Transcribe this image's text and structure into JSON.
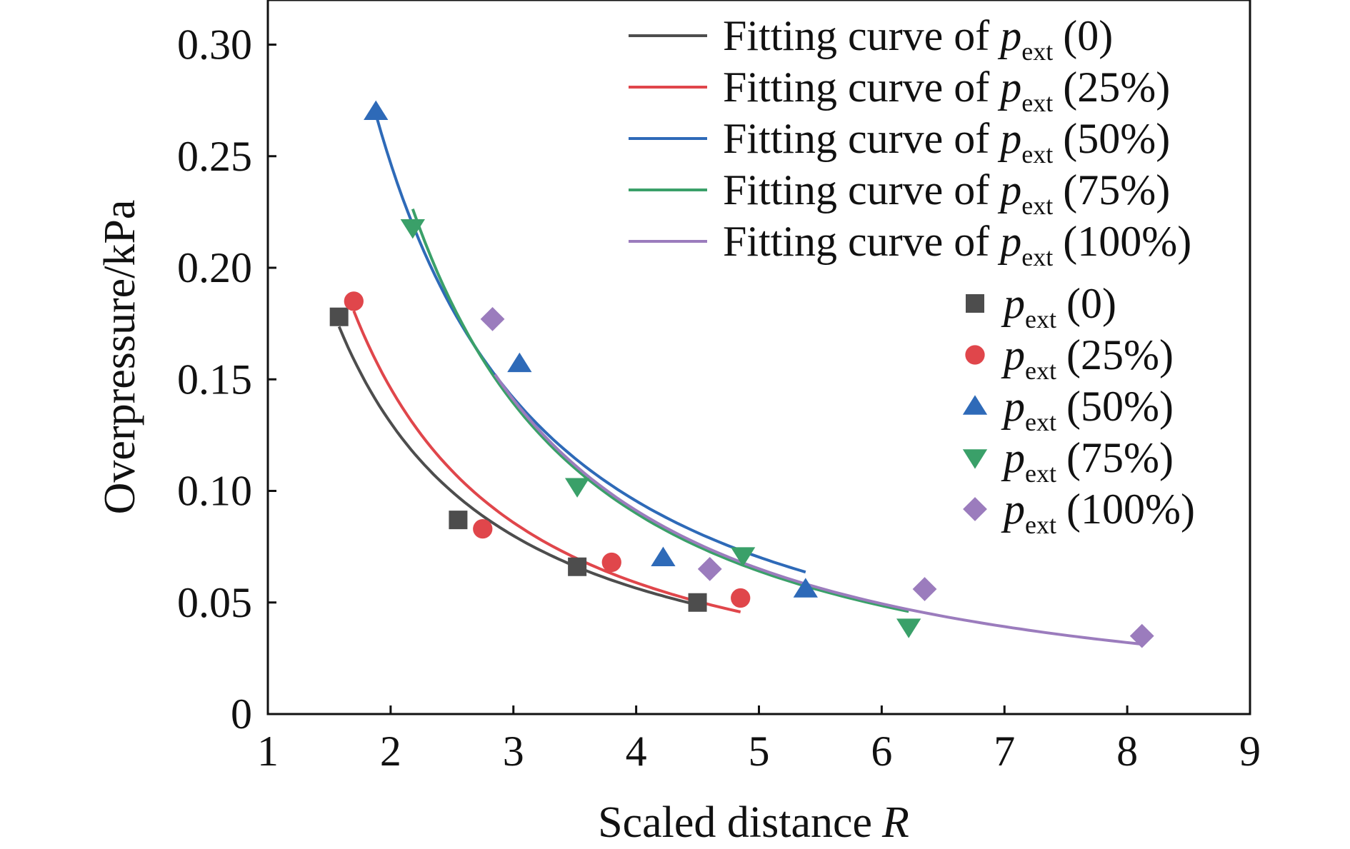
{
  "chart_data": {
    "type": "scatter",
    "xlabel": "Scaled distance",
    "xlabel_symbol": "R",
    "ylabel": "Overpressure/kPa",
    "xlim": [
      1,
      9
    ],
    "ylim": [
      0,
      0.32
    ],
    "xticks": [
      1,
      2,
      3,
      4,
      5,
      6,
      7,
      8,
      9
    ],
    "xtick_labels": [
      "1",
      "2",
      "3",
      "4",
      "5",
      "6",
      "7",
      "8",
      "9"
    ],
    "yticks": [
      0,
      0.05,
      0.1,
      0.15,
      0.2,
      0.25,
      0.3
    ],
    "ytick_labels": [
      "0",
      "0.05",
      "0.10",
      "0.15",
      "0.20",
      "0.25",
      "0.30"
    ],
    "grid": false,
    "legend_position": "top-right",
    "legend_text": {
      "fit_prefix": "Fitting curve of ",
      "var": "p",
      "sub": "ext"
    },
    "series": [
      {
        "label": "(0)",
        "color": "#4d4d4d",
        "marker": "square",
        "points": [
          [
            1.58,
            0.178
          ],
          [
            2.55,
            0.087
          ],
          [
            3.52,
            0.066
          ],
          [
            4.5,
            0.05
          ]
        ],
        "fit": {
          "a": 0.302,
          "b": 1.21,
          "x_range": [
            1.58,
            4.5
          ]
        }
      },
      {
        "label": "(25%)",
        "color": "#e0464b",
        "marker": "circle",
        "points": [
          [
            1.7,
            0.185
          ],
          [
            2.75,
            0.083
          ],
          [
            3.8,
            0.068
          ],
          [
            4.85,
            0.052
          ]
        ],
        "fit": {
          "a": 0.362,
          "b": 1.31,
          "x_range": [
            1.7,
            4.85
          ]
        }
      },
      {
        "label": "(50%)",
        "color": "#2e6ab8",
        "marker": "triangle-up",
        "points": [
          [
            1.88,
            0.27
          ],
          [
            3.05,
            0.157
          ],
          [
            4.22,
            0.07
          ],
          [
            5.38,
            0.056
          ]
        ],
        "fit": {
          "a": 0.638,
          "b": 1.37,
          "x_range": [
            1.88,
            5.38
          ]
        }
      },
      {
        "label": "(75%)",
        "color": "#3aa069",
        "marker": "triangle-down",
        "points": [
          [
            2.18,
            0.218
          ],
          [
            3.52,
            0.102
          ],
          [
            4.87,
            0.071
          ],
          [
            6.22,
            0.039
          ]
        ],
        "fit": {
          "a": 0.74,
          "b": 1.52,
          "x_range": [
            2.18,
            6.22
          ]
        }
      },
      {
        "label": "(100%)",
        "color": "#9b7cbd",
        "marker": "diamond",
        "points": [
          [
            2.83,
            0.177
          ],
          [
            4.6,
            0.065
          ],
          [
            6.35,
            0.056
          ],
          [
            8.12,
            0.035
          ]
        ],
        "fit": {
          "a": 0.74,
          "b": 1.51,
          "x_range": [
            2.85,
            8.12
          ]
        }
      }
    ]
  }
}
